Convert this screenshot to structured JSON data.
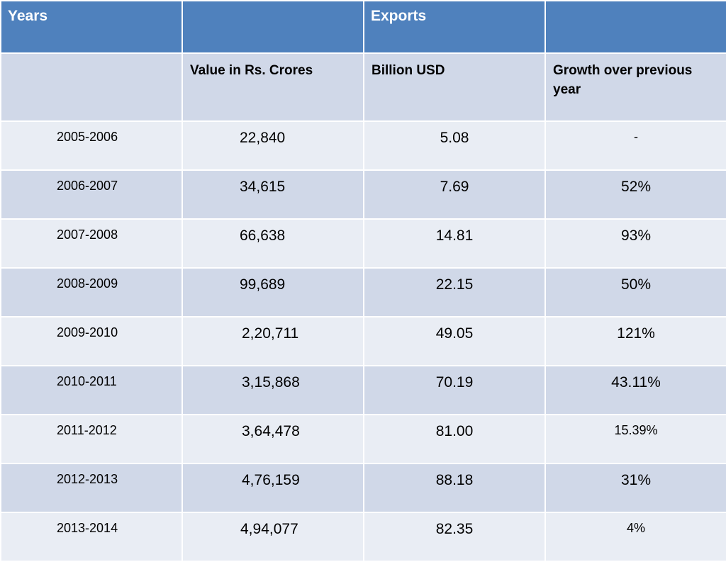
{
  "header": {
    "col1": "Years",
    "col3": "Exports"
  },
  "subheader": {
    "col2": "Value in Rs. Crores",
    "col3": "Billion USD",
    "col4": "Growth over previous year"
  },
  "rows": [
    {
      "year": "2005-2006",
      "value": "22,840",
      "usd": "5.08",
      "growth": "-"
    },
    {
      "year": "2006-2007",
      "value": "34,615",
      "usd": "7.69",
      "growth": "52%"
    },
    {
      "year": "2007-2008",
      "value": "66,638",
      "usd": "14.81",
      "growth": "93%"
    },
    {
      "year": "2008-2009",
      "value": "99,689",
      "usd": "22.15",
      "growth": "50%"
    },
    {
      "year": "2009-2010",
      "value": "2,20,711",
      "usd": "49.05",
      "growth": "121%"
    },
    {
      "year": "2010-2011",
      "value": "3,15,868",
      "usd": "70.19",
      "growth": "43.11%"
    },
    {
      "year": "2011-2012",
      "value": "3,64,478",
      "usd": "81.00",
      "growth": "15.39%"
    },
    {
      "year": "2012-2013",
      "value": "4,76,159",
      "usd": "88.18",
      "growth": "31%"
    },
    {
      "year": "2013-2014",
      "value": "4,94,077",
      "usd": "82.35",
      "growth": "4%"
    }
  ],
  "colors": {
    "header_bg": "#4f81bd",
    "band_dark": "#d0d8e8",
    "band_light": "#e9edf4"
  }
}
